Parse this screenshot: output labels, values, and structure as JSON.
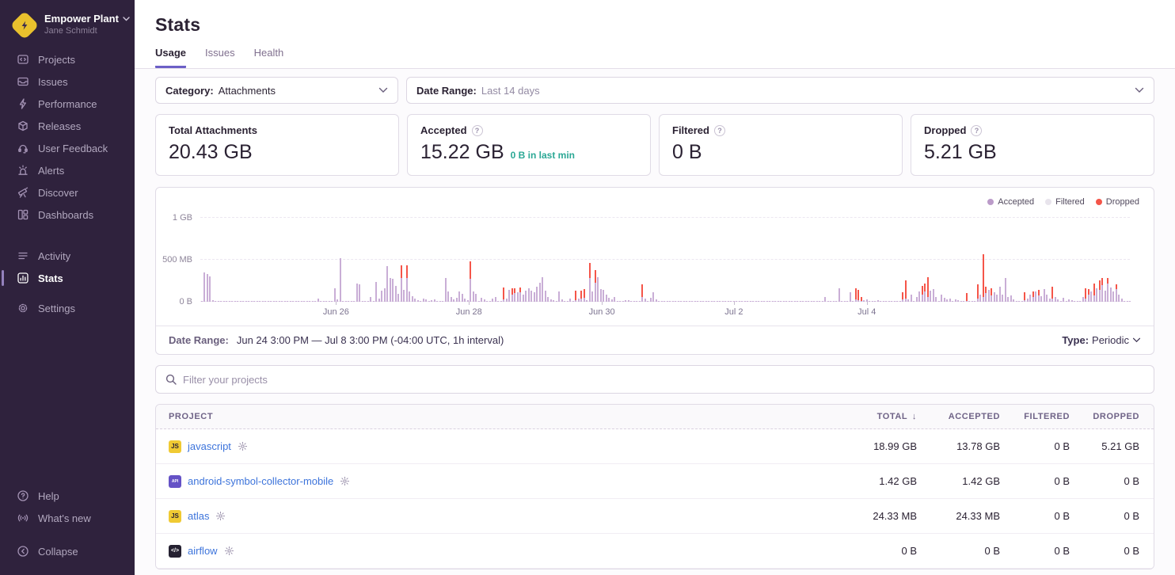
{
  "org": {
    "name": "Empower Plant",
    "user": "Jane Schmidt"
  },
  "sidebar": {
    "primary": [
      {
        "id": "projects",
        "label": "Projects",
        "icon": "projects-icon"
      },
      {
        "id": "issues",
        "label": "Issues",
        "icon": "issues-icon"
      },
      {
        "id": "performance",
        "label": "Performance",
        "icon": "performance-icon"
      },
      {
        "id": "releases",
        "label": "Releases",
        "icon": "releases-icon"
      },
      {
        "id": "user-feedback",
        "label": "User Feedback",
        "icon": "user-feedback-icon"
      },
      {
        "id": "alerts",
        "label": "Alerts",
        "icon": "alerts-icon"
      },
      {
        "id": "discover",
        "label": "Discover",
        "icon": "discover-icon"
      },
      {
        "id": "dashboards",
        "label": "Dashboards",
        "icon": "dashboards-icon"
      }
    ],
    "secondary": [
      {
        "id": "activity",
        "label": "Activity",
        "icon": "activity-icon"
      },
      {
        "id": "stats",
        "label": "Stats",
        "icon": "stats-icon",
        "active": true
      },
      {
        "id": "settings",
        "label": "Settings",
        "icon": "settings-icon",
        "gap_before": true
      }
    ],
    "footer": [
      {
        "id": "help",
        "label": "Help",
        "icon": "help-icon"
      },
      {
        "id": "whats-new",
        "label": "What's new",
        "icon": "whats-new-icon"
      }
    ],
    "collapse": {
      "id": "collapse",
      "label": "Collapse",
      "icon": "collapse-icon"
    }
  },
  "header": {
    "title": "Stats",
    "tabs": [
      {
        "label": "Usage",
        "active": true
      },
      {
        "label": "Issues",
        "active": false
      },
      {
        "label": "Health",
        "active": false
      }
    ]
  },
  "filters": {
    "category_label": "Category:",
    "category_value": "Attachments",
    "daterange_label": "Date Range:",
    "daterange_value": "Last 14 days"
  },
  "cards": [
    {
      "id": "total",
      "title": "Total Attachments",
      "value": "20.43 GB",
      "info": false
    },
    {
      "id": "accepted",
      "title": "Accepted",
      "value": "15.22 GB",
      "extra": "0 B in last min",
      "info": true
    },
    {
      "id": "filtered",
      "title": "Filtered",
      "value": "0 B",
      "info": true
    },
    {
      "id": "dropped",
      "title": "Dropped",
      "value": "5.21 GB",
      "info": true
    }
  ],
  "chart_data": {
    "type": "bar",
    "stacked": true,
    "unit": "MB",
    "interval": "1h",
    "x_start": "Jun 24 3:00 PM",
    "x_end": "Jul 8 3:00 PM",
    "x_tick_labels": [
      "Jun 26",
      "Jun 28",
      "Jun 30",
      "Jul 2",
      "Jul 4"
    ],
    "x_tick_percents": [
      14.6,
      28.9,
      43.2,
      57.4,
      71.7
    ],
    "y_tick_labels": [
      "0 B",
      "500 MB",
      "1 GB"
    ],
    "ylim": [
      0,
      1000
    ],
    "grid": true,
    "legend_position": "top-right",
    "legend": [
      {
        "name": "Accepted",
        "color": "#bb9bc9",
        "bar_color": "#c9aed6"
      },
      {
        "name": "Filtered",
        "color": "#e8e4ec",
        "bar_color": "#e8e4ec"
      },
      {
        "name": "Dropped",
        "color": "#f45549",
        "bar_color": "#f55549"
      }
    ],
    "series_names": [
      "accepted_mb",
      "dropped_mb"
    ],
    "bars_rle_format": "[repeat_count, accepted_mb, dropped_mb]",
    "bars_rle": [
      [
        1,
        5,
        0
      ],
      [
        1,
        345,
        0
      ],
      [
        1,
        330,
        0
      ],
      [
        1,
        300,
        0
      ],
      [
        1,
        20,
        0
      ],
      [
        37,
        4,
        0
      ],
      [
        1,
        35,
        0
      ],
      [
        5,
        4,
        0
      ],
      [
        1,
        160,
        0
      ],
      [
        1,
        25,
        0
      ],
      [
        1,
        515,
        0
      ],
      [
        5,
        4,
        0
      ],
      [
        1,
        215,
        0
      ],
      [
        1,
        205,
        0
      ],
      [
        3,
        6,
        0
      ],
      [
        1,
        55,
        0
      ],
      [
        1,
        10,
        0
      ],
      [
        1,
        240,
        0
      ],
      [
        1,
        35,
        0
      ],
      [
        1,
        135,
        0
      ],
      [
        1,
        165,
        0
      ],
      [
        1,
        425,
        0
      ],
      [
        1,
        285,
        0
      ],
      [
        1,
        270,
        0
      ],
      [
        1,
        185,
        0
      ],
      [
        1,
        95,
        0
      ],
      [
        1,
        280,
        155
      ],
      [
        1,
        140,
        0
      ],
      [
        1,
        285,
        145
      ],
      [
        1,
        125,
        0
      ],
      [
        1,
        65,
        0
      ],
      [
        1,
        40,
        0
      ],
      [
        1,
        15,
        0
      ],
      [
        1,
        10,
        0
      ],
      [
        1,
        40,
        0
      ],
      [
        1,
        25,
        0
      ],
      [
        1,
        10,
        0
      ],
      [
        1,
        15,
        0
      ],
      [
        1,
        30,
        0
      ],
      [
        1,
        10,
        0
      ],
      [
        2,
        5,
        0
      ],
      [
        1,
        280,
        0
      ],
      [
        1,
        120,
        0
      ],
      [
        1,
        60,
        0
      ],
      [
        1,
        30,
        0
      ],
      [
        1,
        45,
        0
      ],
      [
        1,
        120,
        0
      ],
      [
        1,
        95,
        0
      ],
      [
        1,
        40,
        0
      ],
      [
        1,
        15,
        0
      ],
      [
        1,
        270,
        210
      ],
      [
        1,
        120,
        0
      ],
      [
        1,
        95,
        0
      ],
      [
        1,
        10,
        0
      ],
      [
        1,
        45,
        0
      ],
      [
        1,
        25,
        0
      ],
      [
        2,
        8,
        0
      ],
      [
        1,
        40,
        0
      ],
      [
        1,
        55,
        0
      ],
      [
        2,
        8,
        0
      ],
      [
        1,
        30,
        140
      ],
      [
        1,
        40,
        0
      ],
      [
        1,
        145,
        0
      ],
      [
        1,
        90,
        70
      ],
      [
        1,
        100,
        60
      ],
      [
        1,
        115,
        0
      ],
      [
        1,
        110,
        60
      ],
      [
        1,
        90,
        0
      ],
      [
        1,
        130,
        0
      ],
      [
        1,
        160,
        0
      ],
      [
        1,
        130,
        0
      ],
      [
        1,
        110,
        0
      ],
      [
        1,
        180,
        0
      ],
      [
        1,
        230,
        0
      ],
      [
        1,
        290,
        0
      ],
      [
        1,
        130,
        0
      ],
      [
        1,
        60,
        0
      ],
      [
        1,
        30,
        0
      ],
      [
        1,
        20,
        0
      ],
      [
        1,
        8,
        0
      ],
      [
        1,
        120,
        0
      ],
      [
        1,
        30,
        0
      ],
      [
        2,
        8,
        0
      ],
      [
        1,
        40,
        0
      ],
      [
        1,
        8,
        0
      ],
      [
        1,
        20,
        110
      ],
      [
        1,
        35,
        0
      ],
      [
        1,
        40,
        90
      ],
      [
        1,
        50,
        100
      ],
      [
        1,
        20,
        0
      ],
      [
        1,
        280,
        180
      ],
      [
        1,
        120,
        0
      ],
      [
        1,
        230,
        150
      ],
      [
        1,
        290,
        0
      ],
      [
        1,
        150,
        0
      ],
      [
        1,
        140,
        0
      ],
      [
        1,
        90,
        0
      ],
      [
        1,
        45,
        0
      ],
      [
        1,
        25,
        0
      ],
      [
        1,
        60,
        0
      ],
      [
        3,
        6,
        0
      ],
      [
        1,
        20,
        0
      ],
      [
        1,
        15,
        0
      ],
      [
        4,
        5,
        0
      ],
      [
        1,
        60,
        150
      ],
      [
        1,
        40,
        0
      ],
      [
        1,
        8,
        0
      ],
      [
        1,
        45,
        0
      ],
      [
        1,
        110,
        0
      ],
      [
        1,
        30,
        0
      ],
      [
        60,
        4,
        0
      ],
      [
        1,
        60,
        0
      ],
      [
        4,
        4,
        0
      ],
      [
        1,
        160,
        0
      ],
      [
        3,
        4,
        0
      ],
      [
        1,
        110,
        0
      ],
      [
        1,
        6,
        0
      ],
      [
        1,
        30,
        130
      ],
      [
        1,
        20,
        120
      ],
      [
        1,
        10,
        40
      ],
      [
        1,
        20,
        0
      ],
      [
        1,
        25,
        0
      ],
      [
        3,
        5,
        0
      ],
      [
        1,
        15,
        0
      ],
      [
        1,
        10,
        0
      ],
      [
        7,
        4,
        0
      ],
      [
        1,
        30,
        80
      ],
      [
        1,
        40,
        220
      ],
      [
        1,
        30,
        0
      ],
      [
        1,
        90,
        0
      ],
      [
        1,
        8,
        0
      ],
      [
        1,
        60,
        0
      ],
      [
        1,
        120,
        0
      ],
      [
        1,
        90,
        100
      ],
      [
        1,
        120,
        100
      ],
      [
        1,
        60,
        230
      ],
      [
        1,
        130,
        0
      ],
      [
        1,
        150,
        0
      ],
      [
        1,
        60,
        0
      ],
      [
        1,
        8,
        0
      ],
      [
        1,
        90,
        0
      ],
      [
        1,
        45,
        0
      ],
      [
        1,
        30,
        0
      ],
      [
        1,
        40,
        0
      ],
      [
        1,
        8,
        0
      ],
      [
        1,
        30,
        0
      ],
      [
        1,
        20,
        0
      ],
      [
        1,
        8,
        0
      ],
      [
        1,
        8,
        0
      ],
      [
        1,
        0,
        90
      ],
      [
        3,
        8,
        0
      ],
      [
        1,
        40,
        170
      ],
      [
        1,
        90,
        0
      ],
      [
        1,
        60,
        510
      ],
      [
        1,
        100,
        80
      ],
      [
        1,
        140,
        0
      ],
      [
        1,
        80,
        80
      ],
      [
        1,
        110,
        0
      ],
      [
        1,
        90,
        0
      ],
      [
        1,
        180,
        0
      ],
      [
        1,
        90,
        0
      ],
      [
        1,
        280,
        0
      ],
      [
        1,
        60,
        0
      ],
      [
        1,
        80,
        0
      ],
      [
        1,
        30,
        0
      ],
      [
        2,
        6,
        0
      ],
      [
        1,
        8,
        0
      ],
      [
        1,
        20,
        90
      ],
      [
        1,
        40,
        0
      ],
      [
        1,
        90,
        0
      ],
      [
        1,
        60,
        60
      ],
      [
        1,
        120,
        0
      ],
      [
        1,
        80,
        60
      ],
      [
        1,
        70,
        0
      ],
      [
        1,
        150,
        0
      ],
      [
        1,
        90,
        0
      ],
      [
        1,
        40,
        0
      ],
      [
        1,
        40,
        140
      ],
      [
        1,
        60,
        0
      ],
      [
        1,
        30,
        0
      ],
      [
        1,
        8,
        0
      ],
      [
        1,
        50,
        0
      ],
      [
        1,
        8,
        0
      ],
      [
        1,
        30,
        0
      ],
      [
        1,
        20,
        0
      ],
      [
        3,
        5,
        0
      ],
      [
        1,
        60,
        0
      ],
      [
        1,
        40,
        120
      ],
      [
        1,
        90,
        60
      ],
      [
        1,
        120,
        0
      ],
      [
        1,
        80,
        140
      ],
      [
        1,
        160,
        0
      ],
      [
        1,
        140,
        120
      ],
      [
        1,
        200,
        80
      ],
      [
        1,
        130,
        0
      ],
      [
        1,
        220,
        60
      ],
      [
        1,
        170,
        0
      ],
      [
        1,
        120,
        0
      ],
      [
        1,
        150,
        60
      ],
      [
        1,
        90,
        0
      ],
      [
        1,
        40,
        0
      ],
      [
        3,
        6,
        0
      ]
    ]
  },
  "chart_footer": {
    "label": "Date Range:",
    "value": "Jun 24 3:00 PM — Jul 8 3:00 PM (-04:00 UTC, 1h interval)",
    "type_label": "Type:",
    "type_value": "Periodic"
  },
  "search": {
    "placeholder": "Filter your projects"
  },
  "table": {
    "columns": [
      "PROJECT",
      "TOTAL",
      "ACCEPTED",
      "FILTERED",
      "DROPPED"
    ],
    "sorted_column": "TOTAL",
    "sort_direction": "desc",
    "rows": [
      {
        "project": "javascript",
        "platform": "javascript",
        "badge_text": "JS",
        "badge_bg": "#f0ca33",
        "badge_fg": "#2b2233",
        "badge_font": 8,
        "total": "18.99 GB",
        "accepted": "13.78 GB",
        "filtered": "0 B",
        "dropped": "5.21 GB"
      },
      {
        "project": "android-symbol-collector-mobile",
        "platform": "android",
        "badge_text": "API",
        "badge_bg": "#6552c6",
        "badge_fg": "#ffffff",
        "badge_font": 5,
        "total": "1.42 GB",
        "accepted": "1.42 GB",
        "filtered": "0 B",
        "dropped": "0 B"
      },
      {
        "project": "atlas",
        "platform": "javascript",
        "badge_text": "JS",
        "badge_bg": "#f0ca33",
        "badge_fg": "#2b2233",
        "badge_font": 8,
        "total": "24.33 MB",
        "accepted": "24.33 MB",
        "filtered": "0 B",
        "dropped": "0 B"
      },
      {
        "project": "airflow",
        "platform": "generic",
        "badge_text": "</>",
        "badge_bg": "#252131",
        "badge_fg": "#ffffff",
        "badge_font": 7,
        "total": "0 B",
        "accepted": "0 B",
        "filtered": "0 B",
        "dropped": "0 B"
      }
    ]
  },
  "colors": {
    "sidebar_bg": "#2f223d",
    "accent_purple": "#6c5fc7",
    "link_blue": "#3d74db",
    "teal": "#2ba895",
    "bar_accepted": "#c9aed6",
    "bar_dropped": "#f55549",
    "logo_yellow": "#e9c12d"
  }
}
